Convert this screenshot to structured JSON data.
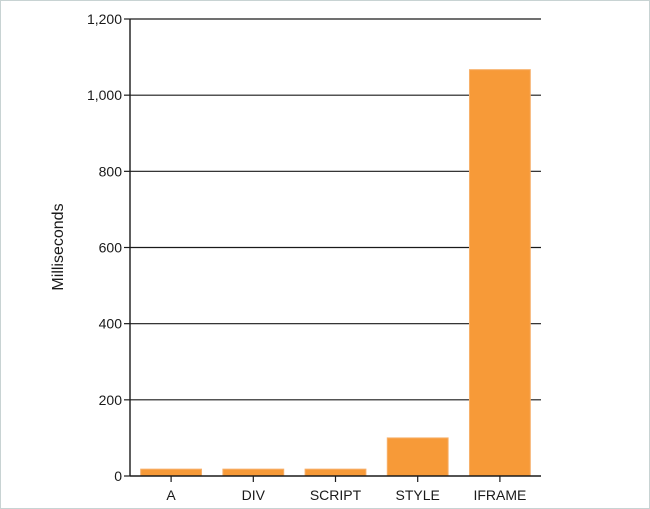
{
  "chart_data": {
    "type": "bar",
    "categories": [
      "A",
      "DIV",
      "SCRIPT",
      "STYLE",
      "IFRAME"
    ],
    "values": [
      18,
      18,
      18,
      100,
      1067
    ],
    "ylabel": "Milliseconds",
    "ylim": [
      0,
      1200
    ],
    "yticks": [
      0,
      200,
      400,
      600,
      800,
      1000,
      1200
    ],
    "ytick_labels": [
      "0",
      "200",
      "400",
      "600",
      "800",
      "1,000",
      "1,200"
    ],
    "grid": "horizontal",
    "colors": {
      "bar": "#F79A38",
      "bar_edge": "#F7B06A",
      "gridline": "#1a1a1a",
      "axis": "#1a1a1a",
      "frame": "#c8d3d3"
    }
  }
}
